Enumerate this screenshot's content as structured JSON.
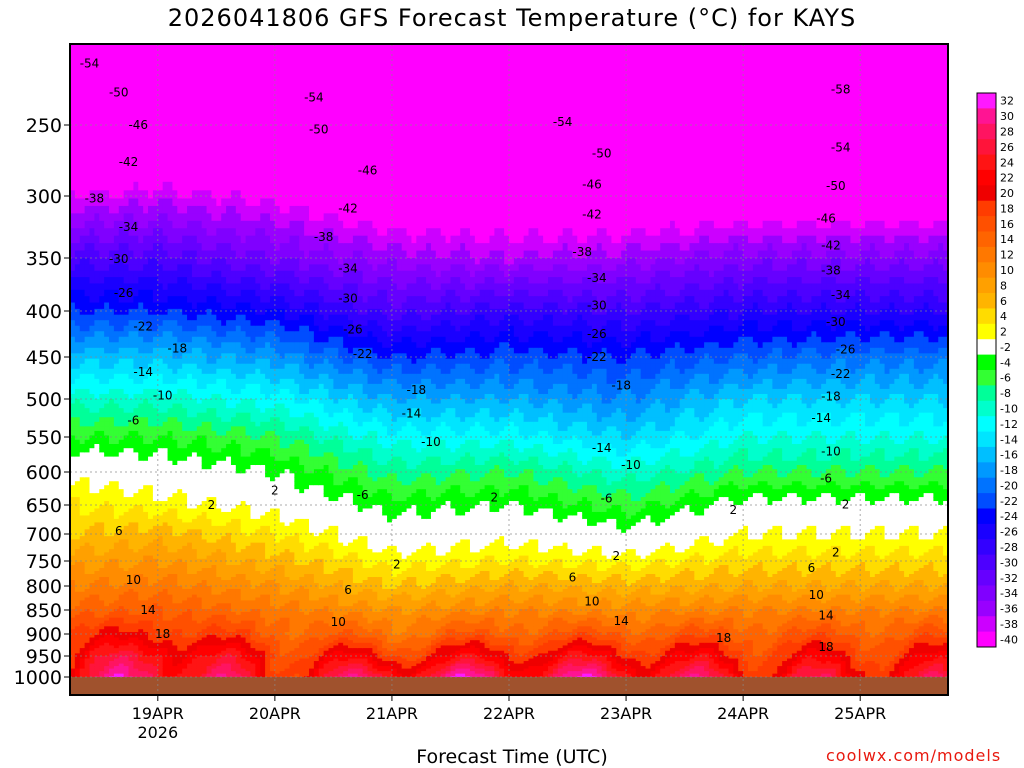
{
  "title": "2026041806 GFS Forecast Temperature (°C) for KAYS",
  "credit": "coolwx.com/models",
  "chart_data": {
    "type": "heatmap",
    "title": "2026041806 GFS Forecast Temperature (°C) for KAYS",
    "xlabel": "Forecast Time (UTC)",
    "ylabel": "",
    "x_ticks": [
      {
        "label": "19APR",
        "sub": "2026",
        "hour": 18
      },
      {
        "label": "20APR",
        "sub": "",
        "hour": 42
      },
      {
        "label": "21APR",
        "sub": "",
        "hour": 66
      },
      {
        "label": "22APR",
        "sub": "",
        "hour": 90
      },
      {
        "label": "23APR",
        "sub": "",
        "hour": 114
      },
      {
        "label": "24APR",
        "sub": "",
        "hour": 138
      },
      {
        "label": "25APR",
        "sub": "",
        "hour": 162
      }
    ],
    "x_range_hours": [
      0,
      180
    ],
    "y_ticks": [
      "250",
      "300",
      "350",
      "400",
      "450",
      "500",
      "550",
      "600",
      "650",
      "700",
      "750",
      "800",
      "850",
      "900",
      "950",
      "1000"
    ],
    "y_ticks_values": [
      250,
      300,
      350,
      400,
      450,
      500,
      550,
      600,
      650,
      700,
      750,
      800,
      850,
      900,
      950,
      1000
    ],
    "y_range_hpa": [
      200,
      1020
    ],
    "colorbar_labels": [
      "32",
      "30",
      "28",
      "26",
      "24",
      "22",
      "20",
      "18",
      "16",
      "14",
      "12",
      "10",
      "8",
      "6",
      "4",
      "2",
      "-2",
      "-4",
      "-6",
      "-8",
      "-10",
      "-12",
      "-14",
      "-16",
      "-18",
      "-20",
      "-22",
      "-24",
      "-26",
      "-28",
      "-30",
      "-32",
      "-34",
      "-36",
      "-38",
      "-40"
    ],
    "colorbar_colors": [
      "#ff19ff",
      "#ff1493",
      "#ff1461",
      "#ff143a",
      "#ff1414",
      "#ff0000",
      "#ef0000",
      "#ff3c00",
      "#ff5000",
      "#ff6400",
      "#ff7800",
      "#ff8c00",
      "#ffa000",
      "#ffb400",
      "#ffdc00",
      "#ffff00",
      "#ffffff",
      "#00ff00",
      "#33ff33",
      "#00ff99",
      "#00ffcc",
      "#00ffff",
      "#00e5ff",
      "#00bfff",
      "#0099ff",
      "#0073ff",
      "#004dff",
      "#0000ff",
      "#1a00ff",
      "#3300ff",
      "#4d00ff",
      "#6600ff",
      "#8000ff",
      "#9900ff",
      "#cc00ff",
      "#ff00ff"
    ],
    "temperature_profiles": [
      {
        "hour": 0,
        "t": {
          "200": -58,
          "250": -48,
          "300": -38,
          "350": -29,
          "400": -22,
          "450": -15,
          "500": -9,
          "550": -4,
          "600": 1,
          "650": 4,
          "700": 6,
          "750": 9,
          "800": 12,
          "850": 15,
          "900": 19,
          "950": 22,
          "1000": 24
        }
      },
      {
        "hour": 18,
        "t": {
          "200": -56,
          "250": -47,
          "300": -37,
          "350": -29,
          "400": -22,
          "450": -15,
          "500": -9,
          "550": -4,
          "600": 0,
          "650": 3,
          "700": 7,
          "750": 10,
          "800": 13,
          "850": 16,
          "900": 20,
          "950": 26,
          "1000": 30
        }
      },
      {
        "hour": 42,
        "t": {
          "200": -57,
          "250": -48,
          "300": -39,
          "350": -32,
          "400": -24,
          "450": -17,
          "500": -11,
          "550": -6,
          "600": -2,
          "650": 1,
          "700": 4,
          "750": 7,
          "800": 10,
          "850": 13,
          "900": 16,
          "950": 20,
          "1000": 22
        }
      },
      {
        "hour": 66,
        "t": {
          "200": -57,
          "250": -49,
          "300": -42,
          "350": -35,
          "400": -29,
          "450": -22,
          "500": -16,
          "550": -11,
          "600": -7,
          "650": -3,
          "700": 0,
          "750": 3,
          "800": 6,
          "850": 10,
          "900": 14,
          "950": 20,
          "1000": 28
        }
      },
      {
        "hour": 90,
        "t": {
          "200": -58,
          "250": -51,
          "300": -42,
          "350": -36,
          "400": -27,
          "450": -21,
          "500": -16,
          "550": -11,
          "600": -6,
          "650": -2,
          "700": 1,
          "750": 4,
          "800": 8,
          "850": 12,
          "900": 16,
          "950": 22,
          "1000": 28
        }
      },
      {
        "hour": 114,
        "t": {
          "200": -58,
          "250": -51,
          "300": -43,
          "350": -35,
          "400": -28,
          "450": -22,
          "500": -18,
          "550": -14,
          "600": -9,
          "650": -5,
          "700": -1,
          "750": 3,
          "800": 7,
          "850": 11,
          "900": 16,
          "950": 22,
          "1000": 28
        }
      },
      {
        "hour": 138,
        "t": {
          "200": -58,
          "250": -51,
          "300": -42,
          "350": -33,
          "400": -26,
          "450": -20,
          "500": -14,
          "550": -10,
          "600": -6,
          "650": -1,
          "700": 2,
          "750": 5,
          "800": 8,
          "850": 12,
          "900": 16,
          "950": 20,
          "1000": 24
        }
      },
      {
        "hour": 162,
        "t": {
          "200": -58,
          "250": -51,
          "300": -42,
          "350": -33,
          "400": -26,
          "450": -19,
          "500": -14,
          "550": -10,
          "600": -6,
          "650": -1,
          "700": 2,
          "750": 5,
          "800": 8,
          "850": 12,
          "900": 16,
          "950": 20,
          "1000": 24
        }
      },
      {
        "hour": 180,
        "t": {
          "200": -58,
          "250": -51,
          "300": -42,
          "350": -33,
          "400": -26,
          "450": -19,
          "500": -14,
          "550": -10,
          "600": -6,
          "650": -1,
          "700": 2,
          "750": 5,
          "800": 8,
          "850": 12,
          "900": 16,
          "950": 20,
          "1000": 24
        }
      }
    ],
    "contour_labels": [
      {
        "text": "-54",
        "hour": 4,
        "p": 212
      },
      {
        "text": "-50",
        "hour": 10,
        "p": 230
      },
      {
        "text": "-46",
        "hour": 14,
        "p": 250
      },
      {
        "text": "-42",
        "hour": 12,
        "p": 276
      },
      {
        "text": "-38",
        "hour": 5,
        "p": 302
      },
      {
        "text": "-34",
        "hour": 12,
        "p": 325
      },
      {
        "text": "-30",
        "hour": 10,
        "p": 351
      },
      {
        "text": "-26",
        "hour": 11,
        "p": 383
      },
      {
        "text": "-22",
        "hour": 15,
        "p": 417
      },
      {
        "text": "-18",
        "hour": 22,
        "p": 441
      },
      {
        "text": "-14",
        "hour": 15,
        "p": 468
      },
      {
        "text": "-10",
        "hour": 19,
        "p": 496
      },
      {
        "text": "-6",
        "hour": 13,
        "p": 528
      },
      {
        "text": "2",
        "hour": 29,
        "p": 650
      },
      {
        "text": "2",
        "hour": 42,
        "p": 628
      },
      {
        "text": "6",
        "hour": 10,
        "p": 695
      },
      {
        "text": "10",
        "hour": 13,
        "p": 788
      },
      {
        "text": "14",
        "hour": 16,
        "p": 850
      },
      {
        "text": "18",
        "hour": 19,
        "p": 900
      },
      {
        "text": "-54",
        "hour": 50,
        "p": 233
      },
      {
        "text": "-50",
        "hour": 51,
        "p": 253
      },
      {
        "text": "-46",
        "hour": 61,
        "p": 282
      },
      {
        "text": "-42",
        "hour": 57,
        "p": 310
      },
      {
        "text": "-38",
        "hour": 52,
        "p": 333
      },
      {
        "text": "-34",
        "hour": 57,
        "p": 360
      },
      {
        "text": "-30",
        "hour": 57,
        "p": 388
      },
      {
        "text": "-26",
        "hour": 58,
        "p": 420
      },
      {
        "text": "-22",
        "hour": 60,
        "p": 447
      },
      {
        "text": "-18",
        "hour": 71,
        "p": 489
      },
      {
        "text": "-14",
        "hour": 70,
        "p": 519
      },
      {
        "text": "-10",
        "hour": 74,
        "p": 557
      },
      {
        "text": "-6",
        "hour": 60,
        "p": 635
      },
      {
        "text": "2",
        "hour": 67,
        "p": 757
      },
      {
        "text": "6",
        "hour": 57,
        "p": 808
      },
      {
        "text": "10",
        "hour": 55,
        "p": 875
      },
      {
        "text": "-54",
        "hour": 101,
        "p": 248
      },
      {
        "text": "-50",
        "hour": 109,
        "p": 270
      },
      {
        "text": "-46",
        "hour": 107,
        "p": 292
      },
      {
        "text": "-42",
        "hour": 107,
        "p": 315
      },
      {
        "text": "-38",
        "hour": 105,
        "p": 345
      },
      {
        "text": "-34",
        "hour": 108,
        "p": 369
      },
      {
        "text": "-30",
        "hour": 108,
        "p": 395
      },
      {
        "text": "-26",
        "hour": 108,
        "p": 425
      },
      {
        "text": "-22",
        "hour": 108,
        "p": 450
      },
      {
        "text": "-18",
        "hour": 113,
        "p": 484
      },
      {
        "text": "-14",
        "hour": 109,
        "p": 566
      },
      {
        "text": "-10",
        "hour": 115,
        "p": 590
      },
      {
        "text": "-6",
        "hour": 110,
        "p": 640
      },
      {
        "text": "2",
        "hour": 87,
        "p": 639
      },
      {
        "text": "2",
        "hour": 112,
        "p": 741
      },
      {
        "text": "6",
        "hour": 103,
        "p": 783
      },
      {
        "text": "10",
        "hour": 107,
        "p": 832
      },
      {
        "text": "14",
        "hour": 113,
        "p": 873
      },
      {
        "text": "-58",
        "hour": 158,
        "p": 228
      },
      {
        "text": "-54",
        "hour": 158,
        "p": 266
      },
      {
        "text": "-50",
        "hour": 157,
        "p": 293
      },
      {
        "text": "-46",
        "hour": 155,
        "p": 318
      },
      {
        "text": "-42",
        "hour": 156,
        "p": 340
      },
      {
        "text": "-38",
        "hour": 156,
        "p": 362
      },
      {
        "text": "-34",
        "hour": 158,
        "p": 385
      },
      {
        "text": "-30",
        "hour": 157,
        "p": 412
      },
      {
        "text": "-26",
        "hour": 159,
        "p": 442
      },
      {
        "text": "-22",
        "hour": 158,
        "p": 470
      },
      {
        "text": "-18",
        "hour": 156,
        "p": 497
      },
      {
        "text": "-14",
        "hour": 154,
        "p": 525
      },
      {
        "text": "-10",
        "hour": 156,
        "p": 571
      },
      {
        "text": "-6",
        "hour": 155,
        "p": 610
      },
      {
        "text": "2",
        "hour": 136,
        "p": 659
      },
      {
        "text": "2",
        "hour": 159,
        "p": 649
      },
      {
        "text": "2",
        "hour": 157,
        "p": 734
      },
      {
        "text": "6",
        "hour": 152,
        "p": 764
      },
      {
        "text": "10",
        "hour": 153,
        "p": 819
      },
      {
        "text": "14",
        "hour": 155,
        "p": 861
      },
      {
        "text": "18",
        "hour": 134,
        "p": 909
      },
      {
        "text": "18",
        "hour": 155,
        "p": 930
      }
    ]
  }
}
